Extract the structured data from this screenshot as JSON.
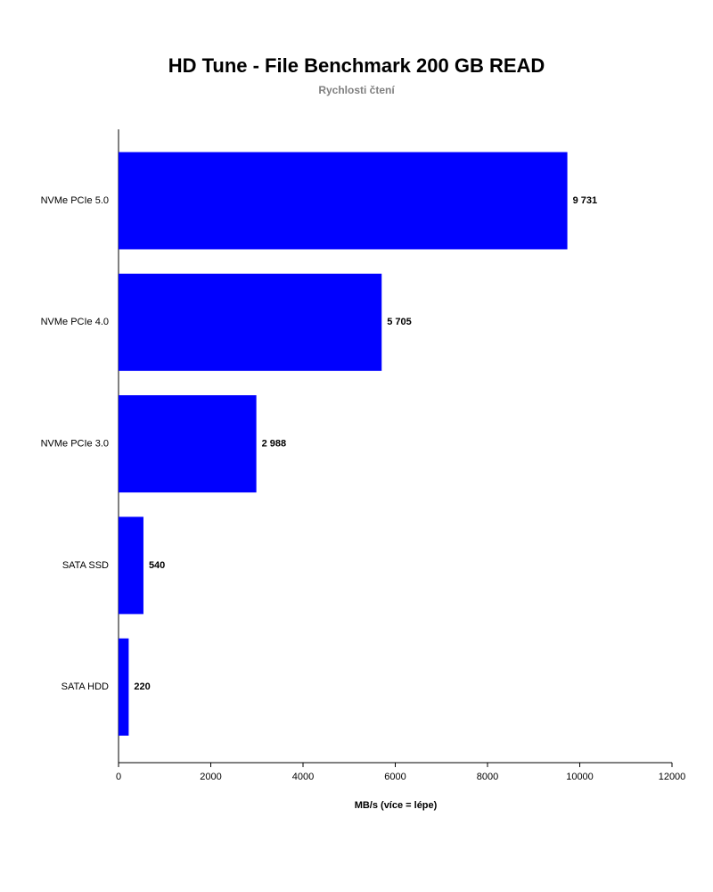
{
  "chart_data": {
    "type": "bar",
    "orientation": "horizontal",
    "title": "HD Tune - File Benchmark 200 GB READ",
    "subtitle": "Rychlosti čtení",
    "x_label": "MB/s (více = lépe)",
    "categories": [
      "NVMe PCIe 5.0",
      "NVMe PCIe 4.0",
      "NVMe PCIe 3.0",
      "SATA SSD",
      "SATA HDD"
    ],
    "values": [
      9731,
      5705,
      2988,
      540,
      220
    ],
    "value_labels": [
      "9 731",
      "5 705",
      "2 988",
      "540",
      "220"
    ],
    "color": "#0000ff",
    "xlim": [
      0,
      12000
    ],
    "xticks": [
      0,
      2000,
      4000,
      6000,
      8000,
      10000,
      12000
    ]
  }
}
